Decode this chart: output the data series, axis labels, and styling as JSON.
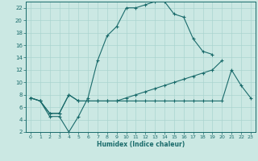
{
  "title": "",
  "xlabel": "Humidex (Indice chaleur)",
  "bg_color": "#cbe8e3",
  "grid_color": "#aad4cf",
  "line_color": "#1a6b6b",
  "xlim": [
    -0.5,
    23.5
  ],
  "ylim": [
    2,
    23
  ],
  "xticks": [
    0,
    1,
    2,
    3,
    4,
    5,
    6,
    7,
    8,
    9,
    10,
    11,
    12,
    13,
    14,
    15,
    16,
    17,
    18,
    19,
    20,
    21,
    22,
    23
  ],
  "yticks": [
    2,
    4,
    6,
    8,
    10,
    12,
    14,
    16,
    18,
    20,
    22
  ],
  "series": [
    {
      "x": [
        0,
        1,
        2,
        3,
        4,
        5,
        6,
        7,
        8,
        9,
        10,
        11,
        12,
        13,
        14,
        15,
        16,
        17,
        18,
        19
      ],
      "y": [
        7.5,
        7,
        4.5,
        4.5,
        2,
        4.5,
        7.5,
        13.5,
        17.5,
        19,
        22,
        22,
        22.5,
        23,
        23,
        21,
        20.5,
        17,
        15,
        14.5
      ]
    },
    {
      "x": [
        0,
        1,
        2,
        3,
        4,
        5,
        6,
        7,
        8,
        9,
        10,
        11,
        12,
        13,
        14,
        15,
        16,
        17,
        18,
        19,
        20
      ],
      "y": [
        7.5,
        7,
        5,
        5,
        8,
        7,
        7,
        7,
        7,
        7,
        7.5,
        8,
        8.5,
        9,
        9.5,
        10,
        10.5,
        11,
        11.5,
        12,
        13.5
      ]
    },
    {
      "x": [
        0,
        1,
        2,
        3,
        4,
        5,
        6,
        7,
        8,
        9,
        10,
        11,
        12,
        13,
        14,
        15,
        16,
        17,
        18,
        19,
        20,
        21,
        22,
        23
      ],
      "y": [
        7.5,
        7,
        5,
        5,
        8,
        7,
        7,
        7,
        7,
        7,
        7,
        7,
        7,
        7,
        7,
        7,
        7,
        7,
        7,
        7,
        7,
        12,
        9.5,
        7.5
      ]
    }
  ]
}
